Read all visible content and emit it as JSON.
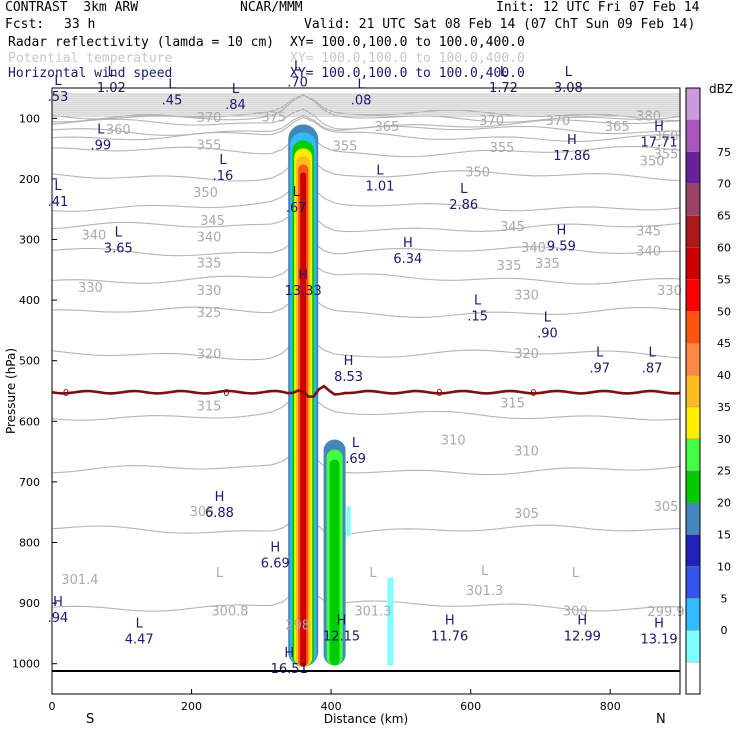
{
  "header": {
    "model": "CONTRAST  3km ARW",
    "org": "NCAR/MMM",
    "init": "Init: 12 UTC Fri 07 Feb 14",
    "fcst_label": "Fcst:",
    "fcst_value": "33 h",
    "valid": "Valid: 21 UTC Sat 08 Feb 14 (07 ChT Sun 09 Feb 14)",
    "fields": [
      {
        "name": "Radar reflectivity (lamda = 10 cm)",
        "xy": "XY= 100.0,100.0 to 100.0,400.0"
      },
      {
        "name": "Potential temperature",
        "xy": "XY= 100.0,100.0 to 100.0,400.0"
      },
      {
        "name": "Horizontal wind speed",
        "xy": "XY= 100.0,100.0 to 100.0,400.0"
      }
    ]
  },
  "chart_data": {
    "type": "heatmap",
    "xlabel": "Distance (km)",
    "ylabel": "Pressure (hPa)",
    "xlim": [
      0,
      900
    ],
    "ylim": [
      1050,
      50
    ],
    "x_ticks": [
      0,
      200,
      400,
      600,
      800
    ],
    "y_ticks": [
      100,
      200,
      300,
      400,
      500,
      600,
      700,
      800,
      900,
      1000
    ],
    "left_end": "S",
    "right_end": "N",
    "colorbar": {
      "units": "dBZ",
      "levels": [
        0,
        5,
        10,
        15,
        20,
        25,
        30,
        35,
        40,
        45,
        50,
        55,
        60,
        65,
        70,
        75
      ],
      "colors": [
        "#ffffff",
        "#80ffff",
        "#33bbff",
        "#3355ee",
        "#2222bb",
        "#4488bb",
        "#00cc00",
        "#44ff44",
        "#ffee00",
        "#ffbb22",
        "#ff8844",
        "#ff5511",
        "#ff0000",
        "#cc0000",
        "#aa1a1a",
        "#994466",
        "#662299",
        "#aa55bb",
        "#cc99dd"
      ]
    },
    "theta_contours": [
      {
        "value": "380",
        "p": 95
      },
      {
        "value": "375",
        "p": 98
      },
      {
        "value": "370",
        "p": 110
      },
      {
        "value": "365",
        "p": 120
      },
      {
        "value": "360",
        "p": 130
      },
      {
        "value": "355",
        "p": 155
      },
      {
        "value": "350",
        "p": 195
      },
      {
        "value": "345",
        "p": 245
      },
      {
        "value": "340",
        "p": 280
      },
      {
        "value": "335",
        "p": 320
      },
      {
        "value": "330",
        "p": 365
      },
      {
        "value": "325",
        "p": 420
      },
      {
        "value": "320",
        "p": 490
      },
      {
        "value": "315",
        "p": 590
      },
      {
        "value": "310",
        "p": 680
      },
      {
        "value": "305",
        "p": 780
      },
      {
        "value": "300",
        "p": 905
      }
    ],
    "theta_labels": [
      {
        "text": "380",
        "x": 855,
        "p": 95
      },
      {
        "text": "375",
        "x": 318,
        "p": 97
      },
      {
        "text": "370",
        "x": 225,
        "p": 98
      },
      {
        "text": "370",
        "x": 630,
        "p": 103
      },
      {
        "text": "370",
        "x": 725,
        "p": 103
      },
      {
        "text": "365",
        "x": 480,
        "p": 113
      },
      {
        "text": "365",
        "x": 810,
        "p": 113
      },
      {
        "text": "360",
        "x": 95,
        "p": 118
      },
      {
        "text": "360",
        "x": 880,
        "p": 128
      },
      {
        "text": "355",
        "x": 225,
        "p": 143
      },
      {
        "text": "355",
        "x": 420,
        "p": 145
      },
      {
        "text": "355",
        "x": 645,
        "p": 147
      },
      {
        "text": "355",
        "x": 880,
        "p": 158
      },
      {
        "text": "350",
        "x": 610,
        "p": 188
      },
      {
        "text": "350",
        "x": 860,
        "p": 170
      },
      {
        "text": "350",
        "x": 220,
        "p": 222
      },
      {
        "text": "345",
        "x": 230,
        "p": 268
      },
      {
        "text": "345",
        "x": 660,
        "p": 278
      },
      {
        "text": "345",
        "x": 855,
        "p": 285
      },
      {
        "text": "340",
        "x": 60,
        "p": 292
      },
      {
        "text": "340",
        "x": 225,
        "p": 295
      },
      {
        "text": "340",
        "x": 690,
        "p": 312
      },
      {
        "text": "340",
        "x": 855,
        "p": 318
      },
      {
        "text": "335",
        "x": 225,
        "p": 338
      },
      {
        "text": "335",
        "x": 655,
        "p": 342
      },
      {
        "text": "335",
        "x": 710,
        "p": 339
      },
      {
        "text": "330",
        "x": 55,
        "p": 378
      },
      {
        "text": "330",
        "x": 225,
        "p": 383
      },
      {
        "text": "330",
        "x": 680,
        "p": 391
      },
      {
        "text": "330",
        "x": 885,
        "p": 383
      },
      {
        "text": "325",
        "x": 225,
        "p": 420
      },
      {
        "text": "320",
        "x": 225,
        "p": 488
      },
      {
        "text": "320",
        "x": 680,
        "p": 487
      },
      {
        "text": "315",
        "x": 225,
        "p": 574
      },
      {
        "text": "315",
        "x": 660,
        "p": 569
      },
      {
        "text": "310",
        "x": 575,
        "p": 630
      },
      {
        "text": "310",
        "x": 680,
        "p": 648
      },
      {
        "text": "305",
        "x": 215,
        "p": 748
      },
      {
        "text": "305",
        "x": 680,
        "p": 751
      },
      {
        "text": "305",
        "x": 880,
        "p": 740
      },
      {
        "text": "301.4",
        "x": 40,
        "p": 860
      },
      {
        "text": "300.8",
        "x": 255,
        "p": 912
      },
      {
        "text": "301.3",
        "x": 460,
        "p": 912
      },
      {
        "text": "301.3",
        "x": 620,
        "p": 878
      },
      {
        "text": "300",
        "x": 750,
        "p": 912
      },
      {
        "text": "299.9",
        "x": 880,
        "p": 913
      },
      {
        "text": "298",
        "x": 352,
        "p": 935
      }
    ],
    "theta_flags": [
      {
        "text": "L",
        "x": 240,
        "p": 849
      },
      {
        "text": "L",
        "x": 460,
        "p": 849
      },
      {
        "text": "L",
        "x": 620,
        "p": 845
      },
      {
        "text": "L",
        "x": 750,
        "p": 849
      }
    ],
    "wind_extrema": [
      {
        "type": "L",
        "value": ".53",
        "x": 5,
        "p": 60
      },
      {
        "type": "L",
        "value": "1.02",
        "x": 85,
        "p": 45
      },
      {
        "type": "L",
        "value": ".45",
        "x": 172,
        "p": 66
      },
      {
        "type": "L",
        "value": ".84",
        "x": 263,
        "p": 73
      },
      {
        "type": "L",
        "value": ".70",
        "x": 352,
        "p": 36
      },
      {
        "type": "L",
        "value": ".08",
        "x": 443,
        "p": 66
      },
      {
        "type": "L",
        "value": "1.72",
        "x": 647,
        "p": 45
      },
      {
        "type": "L",
        "value": "3.08",
        "x": 740,
        "p": 45
      },
      {
        "type": "H",
        "value": "17.86",
        "x": 745,
        "p": 157
      },
      {
        "type": "H",
        "value": "17.71",
        "x": 870,
        "p": 135
      },
      {
        "type": "L",
        "value": ".99",
        "x": 70,
        "p": 140
      },
      {
        "type": "L",
        "value": ".16",
        "x": 245,
        "p": 190
      },
      {
        "type": "L",
        "value": ".41",
        "x": 5,
        "p": 233
      },
      {
        "type": "L",
        "value": ".67",
        "x": 350,
        "p": 243
      },
      {
        "type": "L",
        "value": "1.01",
        "x": 470,
        "p": 208
      },
      {
        "type": "L",
        "value": "2.86",
        "x": 590,
        "p": 238
      },
      {
        "type": "L",
        "value": "3.65",
        "x": 95,
        "p": 310
      },
      {
        "type": "H",
        "value": "6.34",
        "x": 510,
        "p": 327
      },
      {
        "type": "H",
        "value": "9.59",
        "x": 730,
        "p": 307
      },
      {
        "type": "H",
        "value": "13.33",
        "x": 360,
        "p": 380
      },
      {
        "type": "L",
        "value": ".15",
        "x": 610,
        "p": 422
      },
      {
        "type": "L",
        "value": ".90",
        "x": 710,
        "p": 450
      },
      {
        "type": "L",
        "value": ".97",
        "x": 785,
        "p": 508
      },
      {
        "type": "L",
        "value": ".87",
        "x": 860,
        "p": 508
      },
      {
        "type": "H",
        "value": "8.53",
        "x": 425,
        "p": 522
      },
      {
        "type": "L",
        "value": ".69",
        "x": 435,
        "p": 657
      },
      {
        "type": "H",
        "value": "6.88",
        "x": 240,
        "p": 746
      },
      {
        "type": "H",
        "value": "6.69",
        "x": 320,
        "p": 830
      },
      {
        "type": "H",
        "value": ".94",
        "x": 5,
        "p": 920
      },
      {
        "type": "L",
        "value": "4.47",
        "x": 125,
        "p": 955
      },
      {
        "type": "H",
        "value": "12.15",
        "x": 415,
        "p": 950
      },
      {
        "type": "H",
        "value": "11.76",
        "x": 570,
        "p": 950
      },
      {
        "type": "H",
        "value": "12.99",
        "x": 760,
        "p": 950
      },
      {
        "type": "H",
        "value": "13.19",
        "x": 870,
        "p": 955
      },
      {
        "type": "H",
        "value": "16.51",
        "x": 340,
        "p": 1004
      }
    ],
    "zero_contour": {
      "label": "0",
      "p": 552
    },
    "surface_p": 1012
  }
}
